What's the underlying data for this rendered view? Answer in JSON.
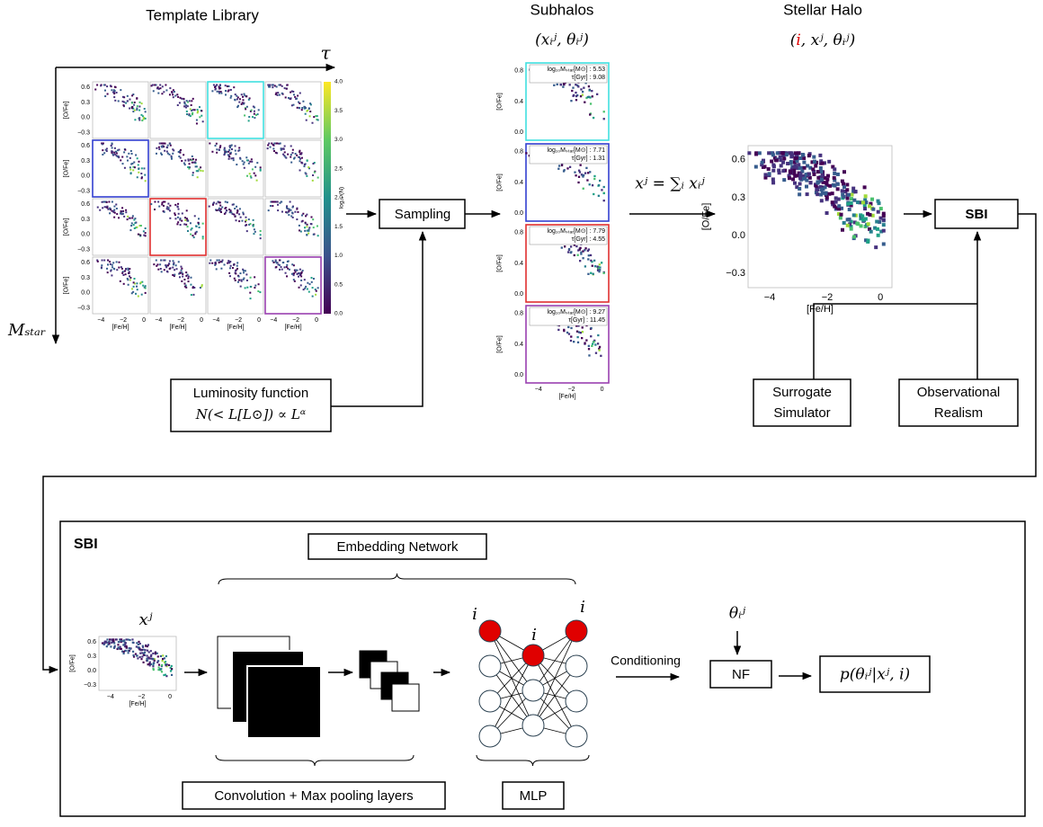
{
  "template_library": {
    "title": "Template Library",
    "tau": "τ",
    "mstar": "Mₛₜₐᵣ",
    "colorbar_label": "log₁₀ (N)",
    "colorbar_ticks": [
      "0.0",
      "0.5",
      "1.0",
      "1.5",
      "2.0",
      "2.5",
      "3.0",
      "3.5",
      "4.0"
    ]
  },
  "axes": {
    "xlabel": "[Fe/H]",
    "ylabel": "[O/Fe]",
    "xticks": [
      "−4",
      "−2",
      "0"
    ],
    "yticks": [
      "0.6",
      "0.3",
      "0.0",
      "−0.3"
    ],
    "sub_yticks": [
      "0.8",
      "0.4",
      "0.0"
    ]
  },
  "subhalos": {
    "title": "Subhalos",
    "label": "(xᵢʲ, θᵢʲ)",
    "panels": [
      {
        "mass": "log₁₀Mₛₜₐᵣ[M⊙] : 5.53",
        "age": "τ[Gyr] : 9.08"
      },
      {
        "mass": "log₁₀Mₛₜₐᵣ[M⊙] : 7.71",
        "age": "τ[Gyr] : 1.31"
      },
      {
        "mass": "log₁₀Mₛₜₐᵣ[M⊙] : 7.79",
        "age": "τ[Gyr] : 4.55"
      },
      {
        "mass": "log₁₀Mₛₜₐᵣ[M⊙] : 9.27",
        "age": "τ[Gyr] : 11.45"
      }
    ]
  },
  "sum_label": "xʲ = ∑ᵢ xᵢʲ",
  "stellar_halo": {
    "title": "Stellar Halo",
    "label": [
      "(",
      "i",
      ", xʲ, θᵢʲ)"
    ]
  },
  "boxes": {
    "sampling": "Sampling",
    "sbi": "SBI",
    "luminosity": [
      "Luminosity function",
      "N(< L[L⊙]) ∝ Lᵅ"
    ],
    "surrogate": [
      "Surrogate",
      "Simulator"
    ],
    "realism": [
      "Observational",
      "Realism"
    ]
  },
  "sbi_panel": {
    "title": "SBI",
    "embedding": "Embedding Network",
    "input": "xʲ",
    "node_label": "i",
    "conditioning": "Conditioning",
    "theta": "θᵢʲ",
    "nf": "NF",
    "posterior": "p(θᵢʲ|xʲ, i)",
    "conv": "Convolution + Max pooling layers",
    "mlp": "MLP"
  }
}
